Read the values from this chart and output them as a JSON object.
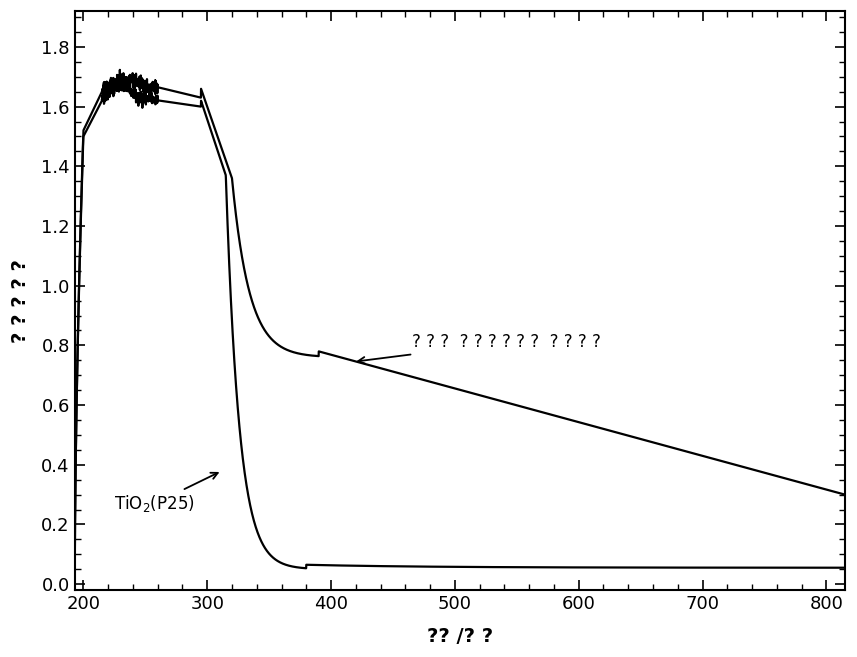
{
  "title": "",
  "xlabel": "?? /? ?",
  "ylabel": "? ? ? ? ?",
  "xlim": [
    193,
    815
  ],
  "ylim": [
    -0.02,
    1.92
  ],
  "xticks": [
    200,
    300,
    400,
    500,
    600,
    700,
    800
  ],
  "yticks": [
    0.0,
    0.2,
    0.4,
    0.6,
    0.8,
    1.0,
    1.2,
    1.4,
    1.6,
    1.8
  ],
  "background_color": "#ffffff",
  "line_color_tio2": "#000000",
  "line_color_iodine": "#000000",
  "label_tio2": "TiO$_2$(P25)",
  "label_iodine": "? ? ?  ? ? ? ? ? ?  ? ? ? ?",
  "figsize": [
    8.57,
    6.57
  ],
  "dpi": 100
}
